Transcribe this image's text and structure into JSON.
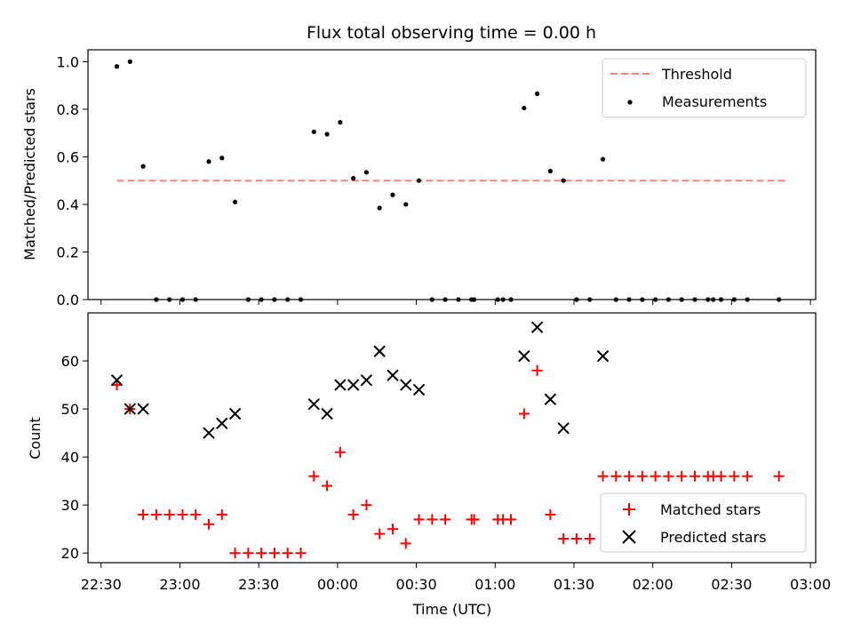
{
  "figure_title": "Flux total observing time = 0.00 h",
  "chart_data": [
    {
      "type": "scatter",
      "ylabel": "Matched/Predicted stars",
      "xlabel": "",
      "x_range": [
        "22:25",
        "03:02"
      ],
      "ylim": [
        0,
        1.05
      ],
      "y_ticks": [
        "0.0",
        "0.2",
        "0.4",
        "0.6",
        "0.8",
        "1.0"
      ],
      "legend_position": "top-right",
      "threshold": {
        "name": "Threshold",
        "value": 0.5,
        "x_start": "22:36",
        "x_end": "02:51",
        "color": "#ff7f7f",
        "style": "dashed"
      },
      "series": [
        {
          "name": "Measurements",
          "color": "#000000",
          "marker": "dot",
          "points": [
            [
              "22:36",
              0.98
            ],
            [
              "22:41",
              1.0
            ],
            [
              "22:46",
              0.56
            ],
            [
              "22:51",
              0.0
            ],
            [
              "22:56",
              0.0
            ],
            [
              "23:01",
              0.0
            ],
            [
              "23:06",
              0.0
            ],
            [
              "23:11",
              0.58
            ],
            [
              "23:16",
              0.595
            ],
            [
              "23:21",
              0.41
            ],
            [
              "23:26",
              0.0
            ],
            [
              "23:31",
              0.0
            ],
            [
              "23:36",
              0.0
            ],
            [
              "23:41",
              0.0
            ],
            [
              "23:46",
              0.0
            ],
            [
              "23:51",
              0.705
            ],
            [
              "23:56",
              0.695
            ],
            [
              "00:01",
              0.745
            ],
            [
              "00:06",
              0.51
            ],
            [
              "00:11",
              0.535
            ],
            [
              "00:16",
              0.385
            ],
            [
              "00:21",
              0.44
            ],
            [
              "00:26",
              0.4
            ],
            [
              "00:31",
              0.5
            ],
            [
              "00:36",
              0.0
            ],
            [
              "00:41",
              0.0
            ],
            [
              "00:46",
              0.0
            ],
            [
              "00:51",
              0.0
            ],
            [
              "00:52",
              0.0
            ],
            [
              "01:01",
              0.0
            ],
            [
              "01:03",
              0.0
            ],
            [
              "01:06",
              0.0
            ],
            [
              "01:11",
              0.805
            ],
            [
              "01:16",
              0.865
            ],
            [
              "01:21",
              0.54
            ],
            [
              "01:26",
              0.5
            ],
            [
              "01:31",
              0.0
            ],
            [
              "01:36",
              0.0
            ],
            [
              "01:41",
              0.59
            ],
            [
              "01:46",
              0.0
            ],
            [
              "01:51",
              0.0
            ],
            [
              "01:56",
              0.0
            ],
            [
              "02:01",
              0.0
            ],
            [
              "02:06",
              0.0
            ],
            [
              "02:11",
              0.0
            ],
            [
              "02:16",
              0.0
            ],
            [
              "02:21",
              0.0
            ],
            [
              "02:23",
              0.0
            ],
            [
              "02:26",
              0.0
            ],
            [
              "02:31",
              0.0
            ],
            [
              "02:36",
              0.0
            ],
            [
              "02:48",
              0.0
            ]
          ]
        }
      ]
    },
    {
      "type": "scatter",
      "ylabel": "Count",
      "xlabel": "Time (UTC)",
      "x_range": [
        "22:25",
        "03:02"
      ],
      "ylim": [
        18,
        70
      ],
      "x_ticks": [
        "22:30",
        "23:00",
        "23:30",
        "00:00",
        "00:30",
        "01:00",
        "01:30",
        "02:00",
        "02:30",
        "03:00"
      ],
      "y_ticks": [
        "20",
        "30",
        "40",
        "50",
        "60"
      ],
      "legend_position": "lower-right",
      "series": [
        {
          "name": "Matched stars",
          "color": "#ff0000",
          "marker": "plus",
          "points": [
            [
              "22:36",
              55
            ],
            [
              "22:41",
              50
            ],
            [
              "22:46",
              28
            ],
            [
              "22:51",
              28
            ],
            [
              "22:56",
              28
            ],
            [
              "23:01",
              28
            ],
            [
              "23:06",
              28
            ],
            [
              "23:11",
              26
            ],
            [
              "23:16",
              28
            ],
            [
              "23:21",
              20
            ],
            [
              "23:26",
              20
            ],
            [
              "23:31",
              20
            ],
            [
              "23:36",
              20
            ],
            [
              "23:41",
              20
            ],
            [
              "23:46",
              20
            ],
            [
              "23:51",
              36
            ],
            [
              "23:56",
              34
            ],
            [
              "00:01",
              41
            ],
            [
              "00:06",
              28
            ],
            [
              "00:11",
              30
            ],
            [
              "00:16",
              24
            ],
            [
              "00:21",
              25
            ],
            [
              "00:26",
              22
            ],
            [
              "00:31",
              27
            ],
            [
              "00:36",
              27
            ],
            [
              "00:41",
              27
            ],
            [
              "00:51",
              27
            ],
            [
              "00:52",
              27
            ],
            [
              "01:01",
              27
            ],
            [
              "01:03",
              27
            ],
            [
              "01:06",
              27
            ],
            [
              "01:11",
              49
            ],
            [
              "01:16",
              58
            ],
            [
              "01:21",
              28
            ],
            [
              "01:26",
              23
            ],
            [
              "01:31",
              23
            ],
            [
              "01:36",
              23
            ],
            [
              "01:41",
              36
            ],
            [
              "01:46",
              36
            ],
            [
              "01:51",
              36
            ],
            [
              "01:56",
              36
            ],
            [
              "02:01",
              36
            ],
            [
              "02:06",
              36
            ],
            [
              "02:11",
              36
            ],
            [
              "02:16",
              36
            ],
            [
              "02:21",
              36
            ],
            [
              "02:23",
              36
            ],
            [
              "02:26",
              36
            ],
            [
              "02:31",
              36
            ],
            [
              "02:36",
              36
            ],
            [
              "02:48",
              36
            ]
          ]
        },
        {
          "name": "Predicted stars",
          "color": "#000000",
          "marker": "x",
          "points": [
            [
              "22:36",
              56
            ],
            [
              "22:41",
              50
            ],
            [
              "22:46",
              50
            ],
            [
              "23:11",
              45
            ],
            [
              "23:16",
              47
            ],
            [
              "23:21",
              49
            ],
            [
              "23:51",
              51
            ],
            [
              "23:56",
              49
            ],
            [
              "00:01",
              55
            ],
            [
              "00:06",
              55
            ],
            [
              "00:11",
              56
            ],
            [
              "00:16",
              62
            ],
            [
              "00:21",
              57
            ],
            [
              "00:26",
              55
            ],
            [
              "00:31",
              54
            ],
            [
              "01:11",
              61
            ],
            [
              "01:16",
              67
            ],
            [
              "01:21",
              52
            ],
            [
              "01:26",
              46
            ],
            [
              "01:41",
              61
            ]
          ]
        }
      ]
    }
  ]
}
